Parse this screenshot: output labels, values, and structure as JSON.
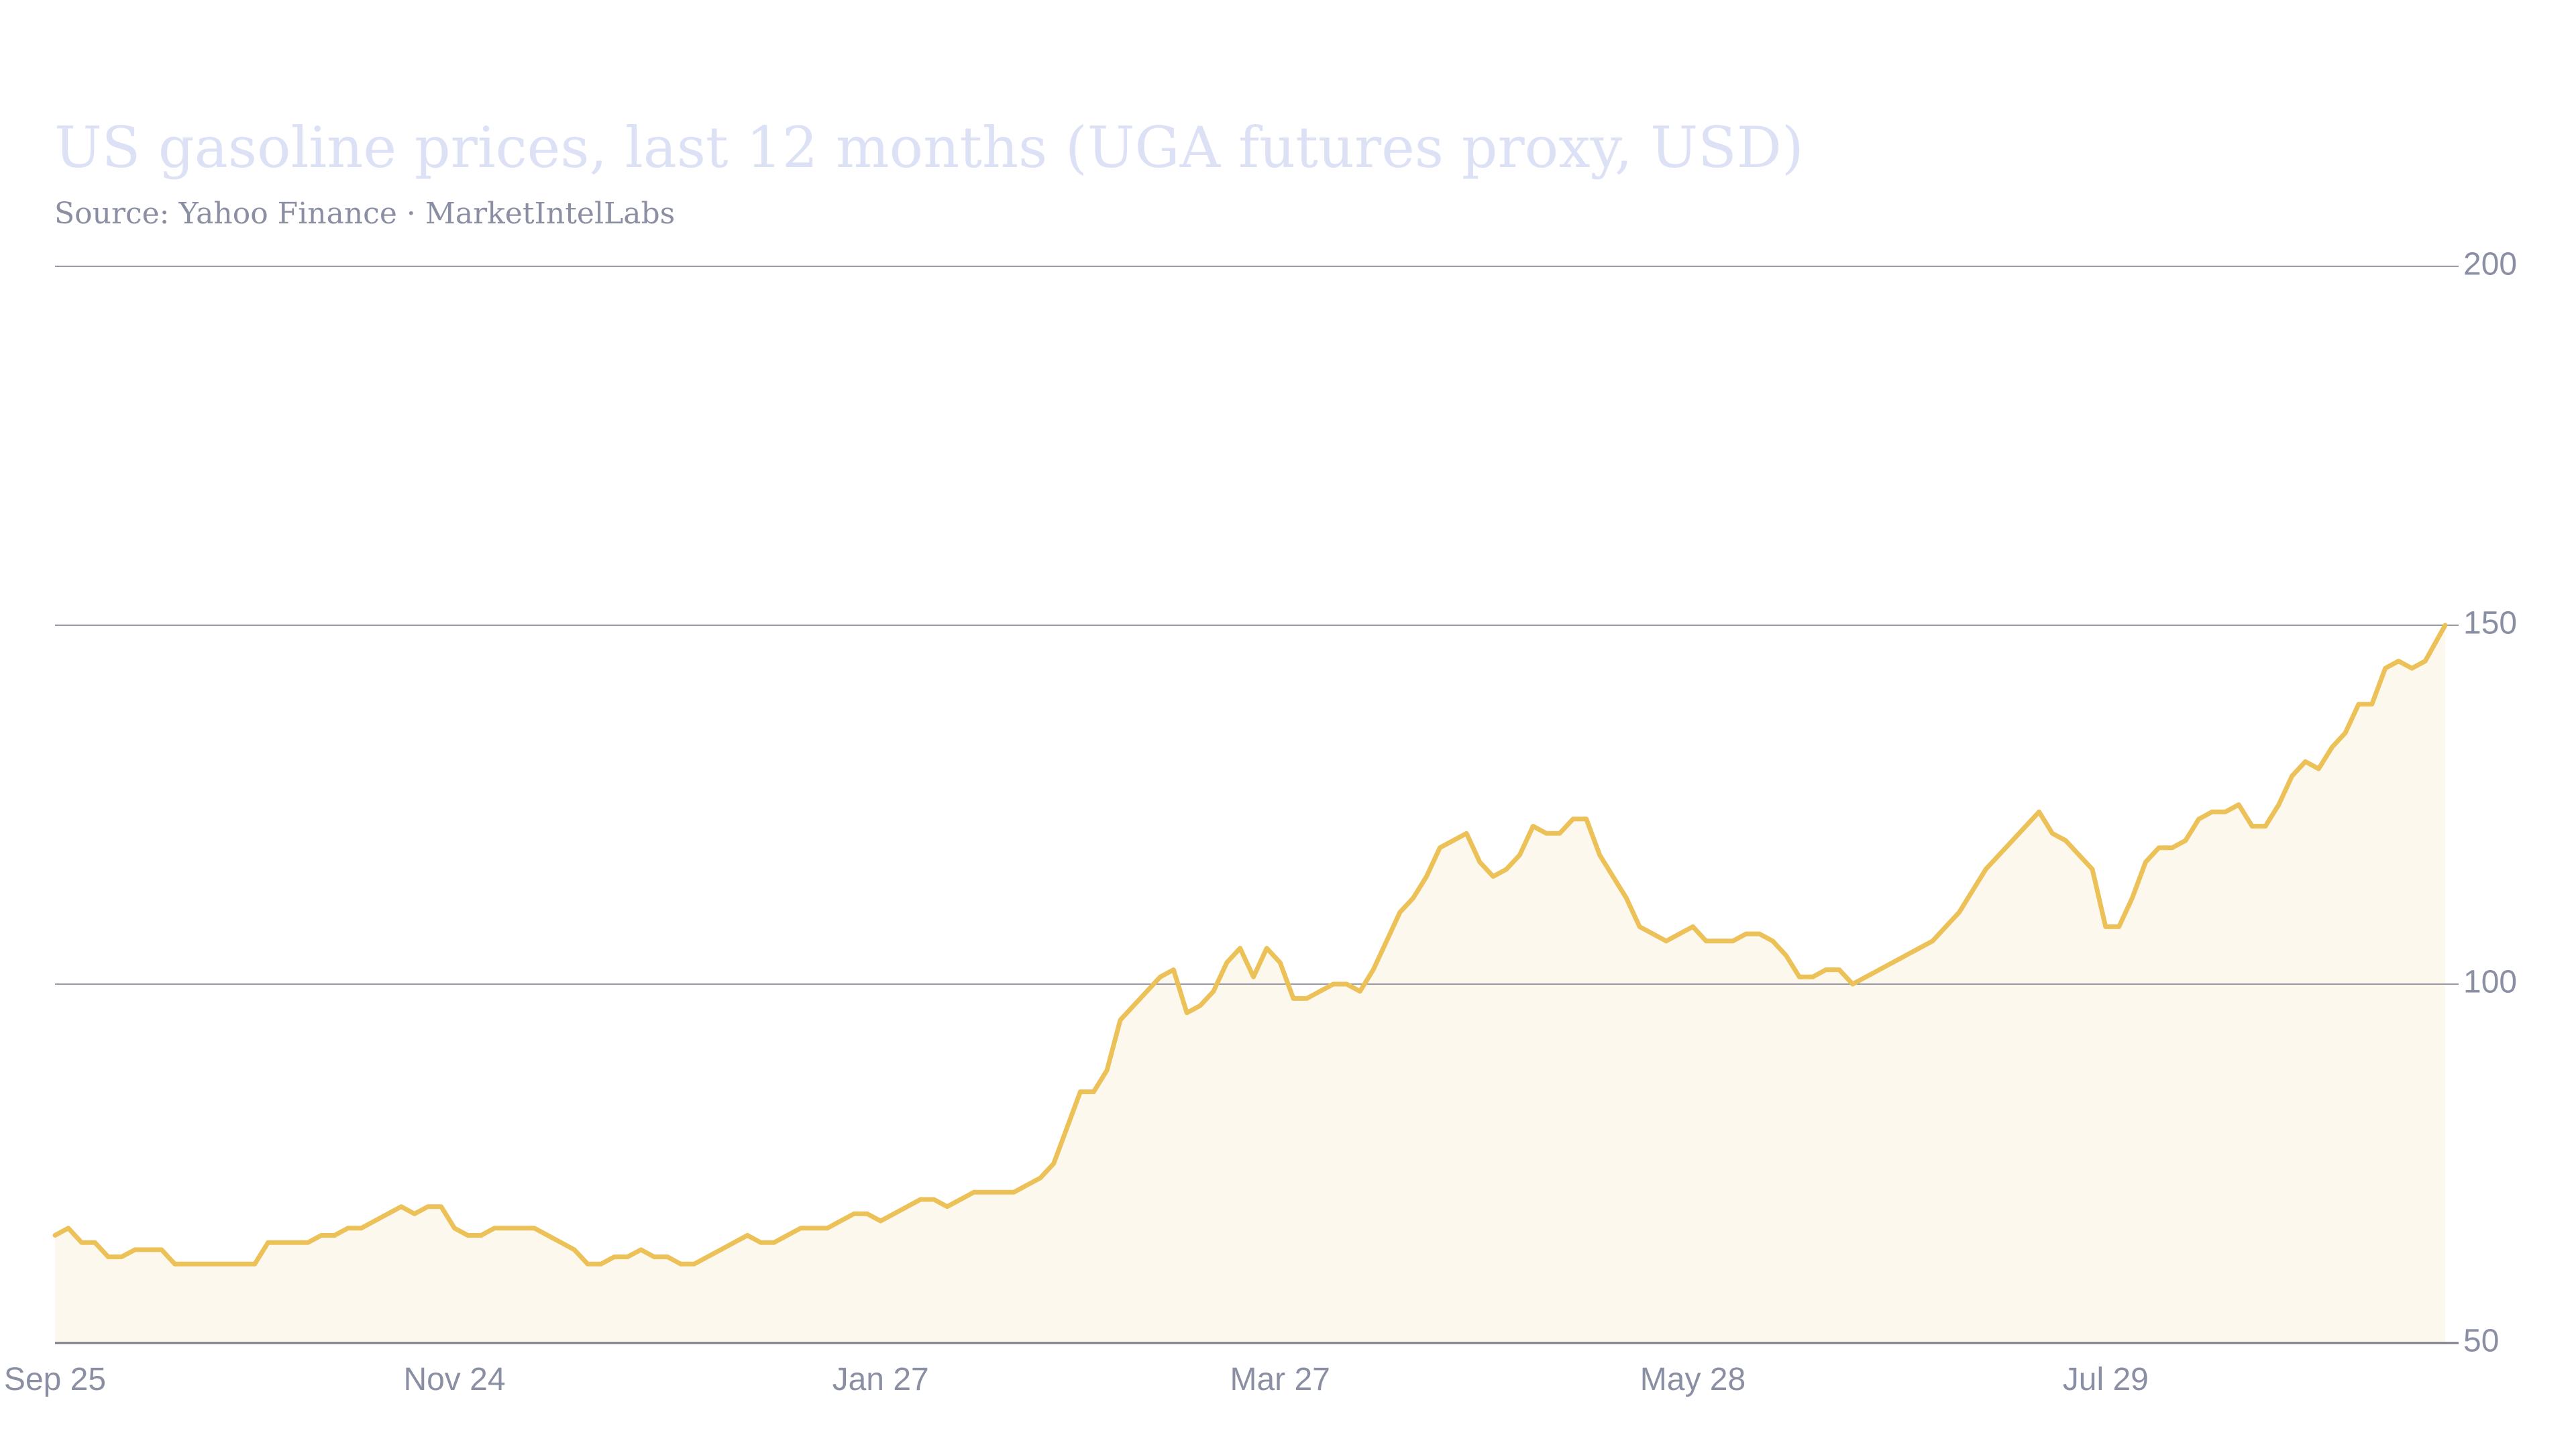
{
  "colors": {
    "background": "#ffffff",
    "title": "#dde1f5",
    "subtitle": "#8b8fa3",
    "axis_text": "#8b8fa3",
    "grid": "#9a9aa6",
    "baseline": "#7d7d88",
    "line": "#ecc158",
    "area": "#fcf8ed"
  },
  "header": {
    "title": "US gasoline prices, last 12 months (UGA futures proxy, USD)",
    "subtitle": "Source: Yahoo Finance · MarketIntelLabs"
  },
  "chart_data": {
    "type": "area",
    "title": "US gasoline prices, last 12 months (UGA futures proxy, USD)",
    "subtitle": "Source: Yahoo Finance · MarketIntelLabs",
    "xlabel": "",
    "ylabel": "",
    "y_axis_side": "right",
    "ylim": [
      50,
      200
    ],
    "y_ticks": [
      50,
      100,
      150,
      200
    ],
    "grid": "horizontal",
    "legend": "none",
    "x_tick_labels": [
      {
        "label": "Sep 25",
        "x": "2023-09-25"
      },
      {
        "label": "Nov 24",
        "x": "2023-11-24"
      },
      {
        "label": "Jan 27",
        "x": "2024-01-27"
      },
      {
        "label": "Mar 27",
        "x": "2024-03-27"
      },
      {
        "label": "May 28",
        "x": "2024-05-28"
      },
      {
        "label": "Jul 29",
        "x": "2024-07-29"
      }
    ],
    "xlim": [
      "2023-09-25",
      "2024-09-18"
    ],
    "series": [
      {
        "points": [
          [
            "2023-09-25",
            65
          ],
          [
            "2023-09-27",
            66
          ],
          [
            "2023-09-29",
            64
          ],
          [
            "2023-10-01",
            64
          ],
          [
            "2023-10-03",
            62
          ],
          [
            "2023-10-05",
            62
          ],
          [
            "2023-10-07",
            63
          ],
          [
            "2023-10-09",
            63
          ],
          [
            "2023-10-11",
            63
          ],
          [
            "2023-10-13",
            61
          ],
          [
            "2023-10-15",
            61
          ],
          [
            "2023-10-17",
            61
          ],
          [
            "2023-10-19",
            61
          ],
          [
            "2023-10-21",
            61
          ],
          [
            "2023-10-23",
            61
          ],
          [
            "2023-10-25",
            61
          ],
          [
            "2023-10-27",
            64
          ],
          [
            "2023-10-29",
            64
          ],
          [
            "2023-10-31",
            64
          ],
          [
            "2023-11-02",
            64
          ],
          [
            "2023-11-04",
            65
          ],
          [
            "2023-11-06",
            65
          ],
          [
            "2023-11-08",
            66
          ],
          [
            "2023-11-10",
            66
          ],
          [
            "2023-11-12",
            67
          ],
          [
            "2023-11-14",
            68
          ],
          [
            "2023-11-16",
            69
          ],
          [
            "2023-11-18",
            68
          ],
          [
            "2023-11-20",
            69
          ],
          [
            "2023-11-22",
            69
          ],
          [
            "2023-11-24",
            66
          ],
          [
            "2023-11-26",
            65
          ],
          [
            "2023-11-28",
            65
          ],
          [
            "2023-11-30",
            66
          ],
          [
            "2023-12-02",
            66
          ],
          [
            "2023-12-04",
            66
          ],
          [
            "2023-12-06",
            66
          ],
          [
            "2023-12-08",
            65
          ],
          [
            "2023-12-10",
            64
          ],
          [
            "2023-12-12",
            63
          ],
          [
            "2023-12-14",
            61
          ],
          [
            "2023-12-16",
            61
          ],
          [
            "2023-12-18",
            62
          ],
          [
            "2023-12-20",
            62
          ],
          [
            "2023-12-22",
            63
          ],
          [
            "2023-12-24",
            62
          ],
          [
            "2023-12-26",
            62
          ],
          [
            "2023-12-28",
            61
          ],
          [
            "2023-12-30",
            61
          ],
          [
            "2024-01-01",
            62
          ],
          [
            "2024-01-03",
            63
          ],
          [
            "2024-01-05",
            64
          ],
          [
            "2024-01-07",
            65
          ],
          [
            "2024-01-09",
            64
          ],
          [
            "2024-01-11",
            64
          ],
          [
            "2024-01-13",
            65
          ],
          [
            "2024-01-15",
            66
          ],
          [
            "2024-01-17",
            66
          ],
          [
            "2024-01-19",
            66
          ],
          [
            "2024-01-21",
            67
          ],
          [
            "2024-01-23",
            68
          ],
          [
            "2024-01-25",
            68
          ],
          [
            "2024-01-27",
            67
          ],
          [
            "2024-01-29",
            68
          ],
          [
            "2024-01-31",
            69
          ],
          [
            "2024-02-02",
            70
          ],
          [
            "2024-02-04",
            70
          ],
          [
            "2024-02-06",
            69
          ],
          [
            "2024-02-08",
            70
          ],
          [
            "2024-02-10",
            71
          ],
          [
            "2024-02-12",
            71
          ],
          [
            "2024-02-14",
            71
          ],
          [
            "2024-02-16",
            71
          ],
          [
            "2024-02-18",
            72
          ],
          [
            "2024-02-20",
            73
          ],
          [
            "2024-02-22",
            75
          ],
          [
            "2024-02-24",
            80
          ],
          [
            "2024-02-26",
            85
          ],
          [
            "2024-02-28",
            85
          ],
          [
            "2024-03-01",
            88
          ],
          [
            "2024-03-03",
            95
          ],
          [
            "2024-03-05",
            97
          ],
          [
            "2024-03-07",
            99
          ],
          [
            "2024-03-09",
            101
          ],
          [
            "2024-03-11",
            102
          ],
          [
            "2024-03-13",
            96
          ],
          [
            "2024-03-15",
            97
          ],
          [
            "2024-03-17",
            99
          ],
          [
            "2024-03-19",
            103
          ],
          [
            "2024-03-21",
            105
          ],
          [
            "2024-03-23",
            101
          ],
          [
            "2024-03-25",
            105
          ],
          [
            "2024-03-27",
            103
          ],
          [
            "2024-03-29",
            98
          ],
          [
            "2024-03-31",
            98
          ],
          [
            "2024-04-02",
            99
          ],
          [
            "2024-04-04",
            100
          ],
          [
            "2024-04-06",
            100
          ],
          [
            "2024-04-08",
            99
          ],
          [
            "2024-04-10",
            102
          ],
          [
            "2024-04-12",
            106
          ],
          [
            "2024-04-14",
            110
          ],
          [
            "2024-04-16",
            112
          ],
          [
            "2024-04-18",
            115
          ],
          [
            "2024-04-20",
            119
          ],
          [
            "2024-04-22",
            120
          ],
          [
            "2024-04-24",
            121
          ],
          [
            "2024-04-26",
            117
          ],
          [
            "2024-04-28",
            115
          ],
          [
            "2024-04-30",
            116
          ],
          [
            "2024-05-02",
            118
          ],
          [
            "2024-05-04",
            122
          ],
          [
            "2024-05-06",
            121
          ],
          [
            "2024-05-08",
            121
          ],
          [
            "2024-05-10",
            123
          ],
          [
            "2024-05-12",
            123
          ],
          [
            "2024-05-14",
            118
          ],
          [
            "2024-05-16",
            115
          ],
          [
            "2024-05-18",
            112
          ],
          [
            "2024-05-20",
            108
          ],
          [
            "2024-05-22",
            107
          ],
          [
            "2024-05-24",
            106
          ],
          [
            "2024-05-26",
            107
          ],
          [
            "2024-05-28",
            108
          ],
          [
            "2024-05-30",
            106
          ],
          [
            "2024-06-01",
            106
          ],
          [
            "2024-06-03",
            106
          ],
          [
            "2024-06-05",
            107
          ],
          [
            "2024-06-07",
            107
          ],
          [
            "2024-06-09",
            106
          ],
          [
            "2024-06-11",
            104
          ],
          [
            "2024-06-13",
            101
          ],
          [
            "2024-06-15",
            101
          ],
          [
            "2024-06-17",
            102
          ],
          [
            "2024-06-19",
            102
          ],
          [
            "2024-06-21",
            100
          ],
          [
            "2024-06-23",
            101
          ],
          [
            "2024-06-25",
            102
          ],
          [
            "2024-06-27",
            103
          ],
          [
            "2024-06-29",
            104
          ],
          [
            "2024-07-01",
            105
          ],
          [
            "2024-07-03",
            106
          ],
          [
            "2024-07-05",
            108
          ],
          [
            "2024-07-07",
            110
          ],
          [
            "2024-07-09",
            113
          ],
          [
            "2024-07-11",
            116
          ],
          [
            "2024-07-13",
            118
          ],
          [
            "2024-07-15",
            120
          ],
          [
            "2024-07-17",
            122
          ],
          [
            "2024-07-19",
            124
          ],
          [
            "2024-07-21",
            121
          ],
          [
            "2024-07-23",
            120
          ],
          [
            "2024-07-25",
            118
          ],
          [
            "2024-07-27",
            116
          ],
          [
            "2024-07-29",
            108
          ],
          [
            "2024-07-31",
            108
          ],
          [
            "2024-08-02",
            112
          ],
          [
            "2024-08-04",
            117
          ],
          [
            "2024-08-06",
            119
          ],
          [
            "2024-08-08",
            119
          ],
          [
            "2024-08-10",
            120
          ],
          [
            "2024-08-12",
            123
          ],
          [
            "2024-08-14",
            124
          ],
          [
            "2024-08-16",
            124
          ],
          [
            "2024-08-18",
            125
          ],
          [
            "2024-08-20",
            122
          ],
          [
            "2024-08-22",
            122
          ],
          [
            "2024-08-24",
            125
          ],
          [
            "2024-08-26",
            129
          ],
          [
            "2024-08-28",
            131
          ],
          [
            "2024-08-30",
            130
          ],
          [
            "2024-09-01",
            133
          ],
          [
            "2024-09-03",
            135
          ],
          [
            "2024-09-05",
            139
          ],
          [
            "2024-09-07",
            139
          ],
          [
            "2024-09-09",
            144
          ],
          [
            "2024-09-11",
            145
          ],
          [
            "2024-09-13",
            144
          ],
          [
            "2024-09-15",
            145
          ],
          [
            "2024-09-18",
            150
          ]
        ]
      }
    ]
  }
}
